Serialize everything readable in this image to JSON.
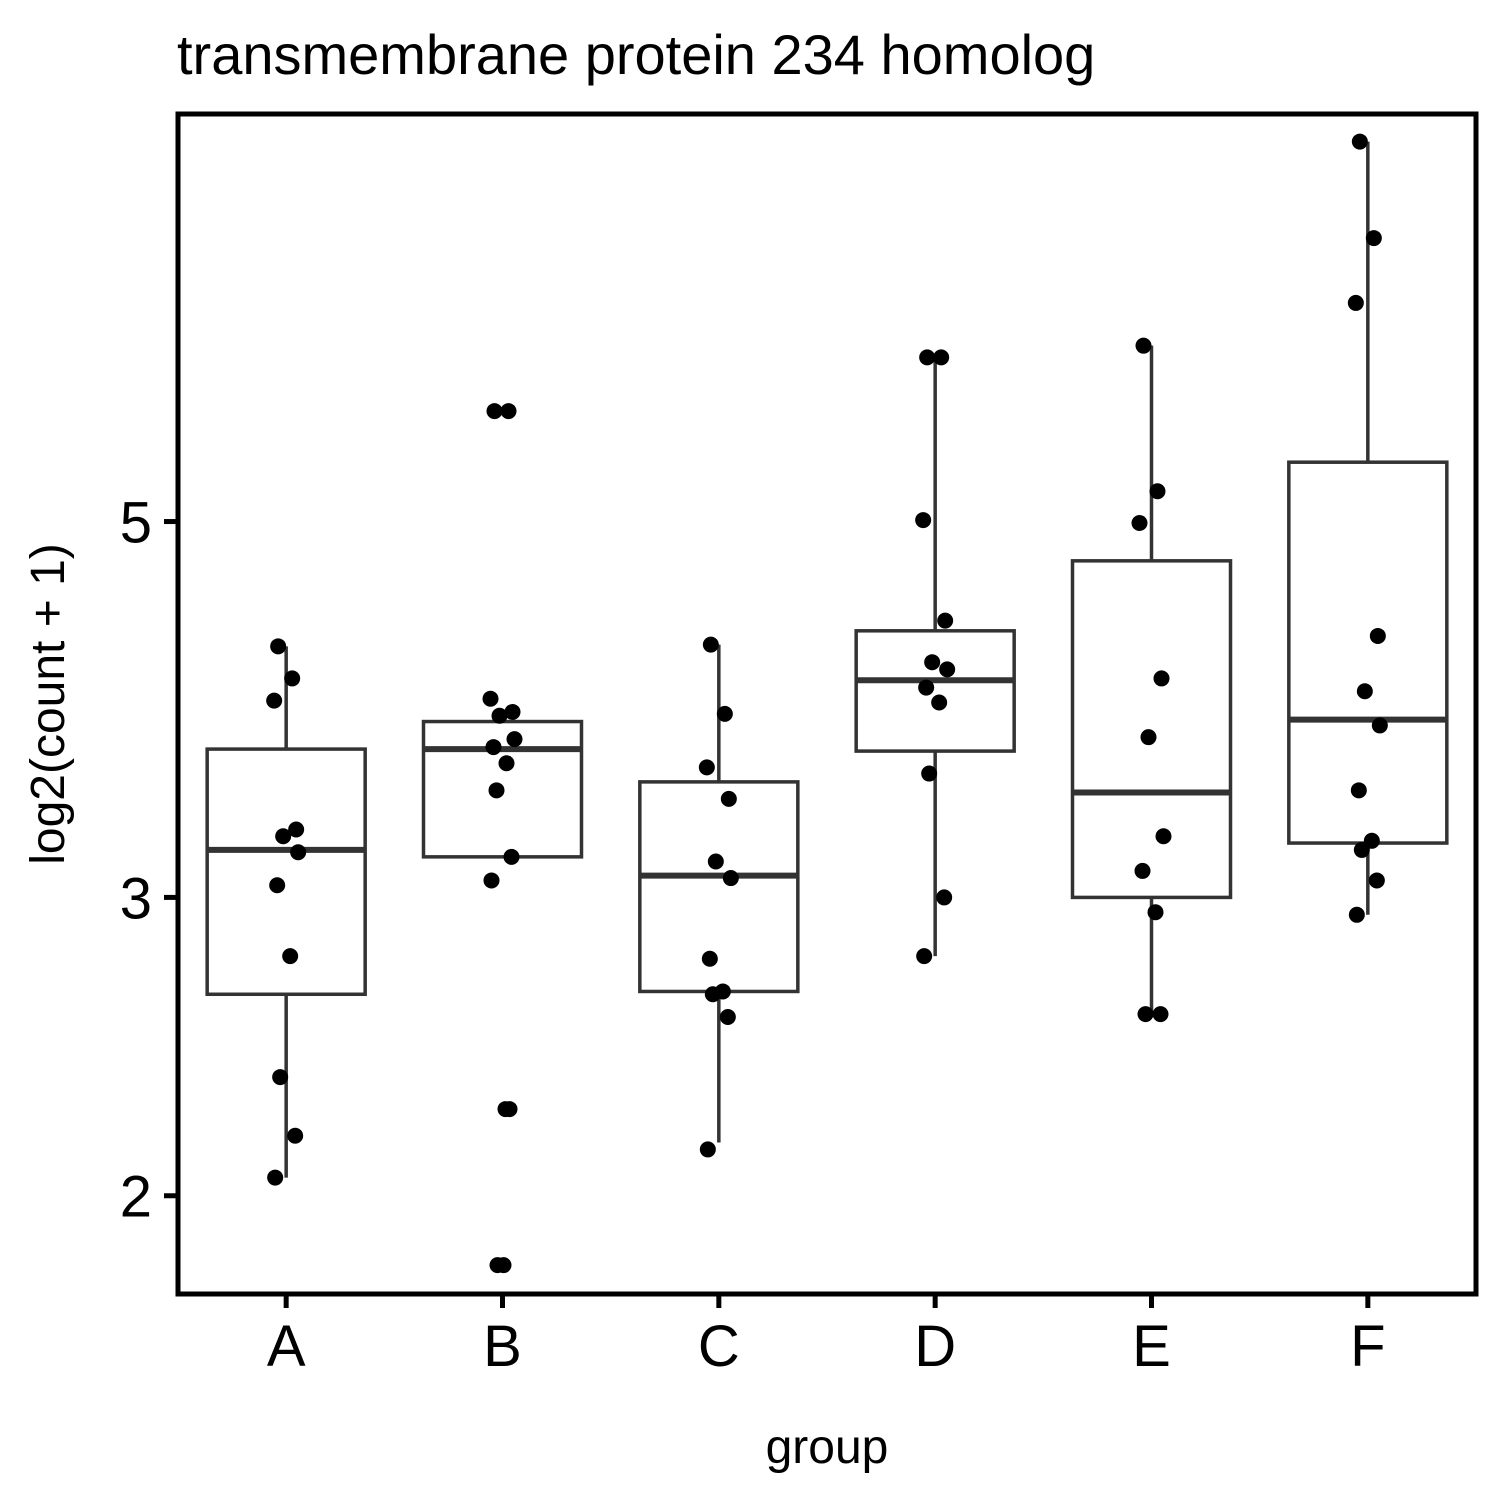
{
  "chart_data": {
    "type": "box",
    "title": "transmembrane protein 234 homolog",
    "xlabel": "group",
    "ylabel": "log2(count + 1)",
    "y_scale": "log2",
    "ylim": [
      1.75,
      8.7
    ],
    "yticks": [
      2,
      3,
      5
    ],
    "grid": false,
    "legend": "none",
    "categories": [
      "A",
      "B",
      "C",
      "D",
      "E",
      "F"
    ],
    "boxes": [
      {
        "group": "A",
        "whisker_low": 2.05,
        "q1": 2.63,
        "median": 3.2,
        "q3": 3.67,
        "whisker_high": 4.22
      },
      {
        "group": "B",
        "whisker_low": 3.17,
        "q1": 3.17,
        "median": 3.67,
        "q3": 3.81,
        "whisker_high": 3.86
      },
      {
        "group": "C",
        "whisker_low": 2.15,
        "q1": 2.64,
        "median": 3.09,
        "q3": 3.51,
        "whisker_high": 4.23
      },
      {
        "group": "D",
        "whisker_low": 2.77,
        "q1": 3.66,
        "median": 4.03,
        "q3": 4.31,
        "whisker_high": 6.25
      },
      {
        "group": "E",
        "whisker_low": 2.56,
        "q1": 3.0,
        "median": 3.46,
        "q3": 4.74,
        "whisker_high": 6.35
      },
      {
        "group": "F",
        "whisker_low": 2.93,
        "q1": 3.23,
        "median": 3.82,
        "q3": 5.42,
        "whisker_high": 8.38
      }
    ],
    "points": [
      {
        "group": "A",
        "values": [
          4.22,
          4.04,
          3.92,
          3.29,
          3.26,
          3.19,
          3.05,
          2.77,
          2.35,
          2.17,
          2.05
        ]
      },
      {
        "group": "B",
        "values": [
          5.81,
          5.81,
          3.93,
          3.86,
          3.84,
          3.72,
          3.68,
          3.6,
          3.47,
          3.17,
          3.07,
          2.25,
          2.25,
          1.82,
          1.82
        ]
      },
      {
        "group": "C",
        "values": [
          4.23,
          3.85,
          3.58,
          3.43,
          3.15,
          3.08,
          2.76,
          2.64,
          2.63,
          2.55,
          2.13
        ]
      },
      {
        "group": "D",
        "values": [
          6.25,
          6.25,
          5.01,
          4.37,
          4.13,
          4.09,
          3.99,
          3.91,
          3.55,
          3.0,
          2.77
        ]
      },
      {
        "group": "E",
        "values": [
          6.35,
          5.21,
          4.99,
          4.04,
          3.73,
          3.26,
          3.11,
          2.94,
          2.56,
          2.56
        ]
      },
      {
        "group": "F",
        "values": [
          8.38,
          7.35,
          6.73,
          4.28,
          3.97,
          3.79,
          3.47,
          3.24,
          3.2,
          3.07,
          2.93
        ]
      }
    ]
  }
}
